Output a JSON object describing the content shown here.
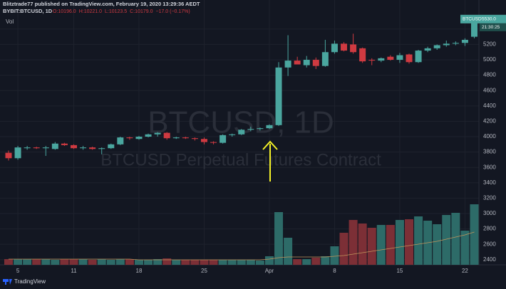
{
  "header": {
    "publisher": "Blitztrade77 published on TradingView.com, February 19, 2020 13:29:36 AEDT",
    "symbol": "BYBIT:BTCUSD, 1D",
    "open": "O:10196.0",
    "high": "H:10221.0",
    "low": "L:10123.5",
    "close": "C:10179.0",
    "change": "−17.0 (−0.17%)"
  },
  "footer": "TradingView",
  "chart_data": {
    "type": "candlestick",
    "volume_label": "Vol",
    "watermark": "BTCUSD, 1D",
    "watermark_subtitle": "BTCUSD Perpetual Futures Contract",
    "categories": [
      null,
      "5",
      null,
      null,
      null,
      null,
      null,
      "11",
      null,
      null,
      null,
      null,
      null,
      null,
      "18",
      null,
      null,
      null,
      null,
      null,
      null,
      "25",
      null,
      null,
      null,
      null,
      null,
      null,
      "Apr",
      null,
      null,
      null,
      null,
      null,
      null,
      "8",
      null,
      null,
      null,
      null,
      null,
      null,
      "15",
      null,
      null,
      null,
      null,
      null,
      null,
      "22",
      null
    ],
    "open": [
      3790,
      3720,
      3850,
      3860,
      3850,
      3840,
      3910,
      3890,
      3850,
      3860,
      3840,
      3850,
      3900,
      3990,
      3970,
      4000,
      4030,
      4050,
      3980,
      3990,
      3980,
      3970,
      3930,
      3920,
      4020,
      4030,
      4090,
      4100,
      4110,
      4150,
      4900,
      4990,
      4930,
      5000,
      4920,
      5100,
      5210,
      5200,
      5150,
      5000,
      4990,
      5040,
      5000,
      5070,
      4970,
      5120,
      5150,
      5190,
      5210,
      5220,
      5300
    ],
    "high": [
      3820,
      3880,
      3880,
      3870,
      3880,
      3930,
      3920,
      3900,
      3880,
      3870,
      3860,
      3910,
      4000,
      4000,
      4010,
      4040,
      4060,
      4060,
      4000,
      4000,
      3990,
      3990,
      3940,
      4030,
      4040,
      4100,
      4130,
      4120,
      4160,
      4970,
      5320,
      5040,
      5050,
      5030,
      5260,
      5250,
      5230,
      5340,
      5160,
      5020,
      5030,
      5060,
      5090,
      5080,
      5130,
      5170,
      5200,
      5250,
      5240,
      5280,
      5560
    ],
    "low": [
      3690,
      3700,
      3830,
      3840,
      3750,
      3830,
      3880,
      3840,
      3830,
      3830,
      3770,
      3840,
      3890,
      3960,
      3960,
      3990,
      4000,
      3960,
      3970,
      3970,
      3950,
      3900,
      3900,
      3910,
      4000,
      4020,
      4070,
      4080,
      4100,
      4140,
      4790,
      4940,
      4900,
      4880,
      4910,
      5080,
      5110,
      5080,
      4960,
      4930,
      4970,
      4990,
      4960,
      4950,
      4960,
      5100,
      5130,
      5170,
      5190,
      5180,
      5280
    ],
    "close": [
      3720,
      3860,
      3860,
      3850,
      3860,
      3910,
      3890,
      3850,
      3860,
      3840,
      3850,
      3900,
      3990,
      3980,
      4000,
      4030,
      4050,
      3980,
      3990,
      3980,
      3970,
      3930,
      3920,
      4020,
      4030,
      4090,
      4100,
      4110,
      4150,
      4900,
      4990,
      4940,
      5000,
      4920,
      5100,
      5210,
      5120,
      5100,
      4980,
      4990,
      5020,
      5000,
      5060,
      4970,
      5120,
      5150,
      5190,
      5210,
      5220,
      5260,
      5530
    ],
    "volume": [
      8,
      8,
      8,
      8,
      8,
      7,
      8,
      8,
      8,
      7,
      8,
      7,
      8,
      8,
      7,
      7,
      8,
      9,
      7,
      7,
      7,
      7,
      7,
      7,
      7,
      7,
      7,
      6,
      12,
      74,
      38,
      8,
      8,
      10,
      12,
      26,
      45,
      63,
      58,
      52,
      56,
      56,
      63,
      64,
      68,
      62,
      57,
      70,
      73,
      48,
      85
    ],
    "volume_ma": [
      8,
      8,
      8,
      8,
      8,
      8,
      8,
      8,
      8,
      8,
      8,
      8,
      8,
      8,
      7,
      7,
      7,
      7,
      7,
      7,
      7,
      7,
      7,
      7,
      7,
      7,
      7,
      7,
      8,
      10,
      11,
      11,
      11,
      11,
      11,
      12,
      13,
      15,
      17,
      19,
      21,
      23,
      25,
      27,
      29,
      31,
      33,
      36,
      39,
      42,
      46
    ],
    "up_color": "#4aa69f",
    "down_color": "#cf3a41",
    "up_volume_color": "#2d6b68",
    "down_volume_color": "#7c2f36",
    "volume_ma_color": "#c2955c",
    "ylim": [
      2333,
      5593
    ],
    "yticks": [
      2400,
      2600,
      2800,
      3000,
      3200,
      3400,
      3600,
      3800,
      4000,
      4200,
      4400,
      4600,
      4800,
      5000,
      5200,
      5400
    ],
    "grid": true,
    "last_price": {
      "symbol": "BTCUSD",
      "price": {
        "value": 5530,
        "label": "5530.0"
      },
      "countdown": "21:30:25"
    }
  }
}
